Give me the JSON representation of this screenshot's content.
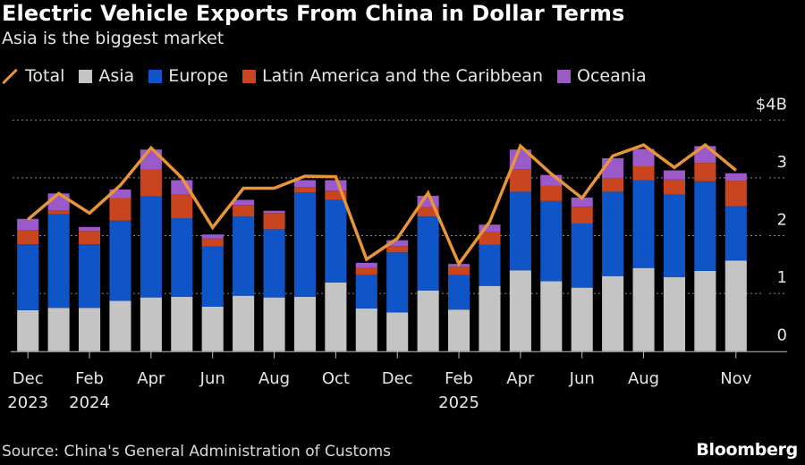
{
  "header": {
    "title": "Electric Vehicle Exports From China in Dollar Terms",
    "subtitle": "Asia is the biggest market"
  },
  "legend": [
    {
      "label": "Total",
      "kind": "line",
      "color": "#e8953a"
    },
    {
      "label": "Asia",
      "kind": "box",
      "color": "#c4c4c4"
    },
    {
      "label": "Europe",
      "kind": "box",
      "color": "#0f55c8"
    },
    {
      "label": "Latin America and the Caribbean",
      "kind": "box",
      "color": "#c8451f"
    },
    {
      "label": "Oceania",
      "kind": "box",
      "color": "#9b59c9"
    }
  ],
  "footer": {
    "source": "Source: China's General Administration of Customs",
    "brand": "Bloomberg"
  },
  "chart_data": {
    "type": "bar",
    "stacked": true,
    "title": "Electric Vehicle Exports From China in Dollar Terms",
    "subtitle": "Asia is the biggest market",
    "xlabel": "",
    "ylabel": "",
    "ylim": [
      0,
      4
    ],
    "yticks": [
      {
        "value": 0,
        "label": "0"
      },
      {
        "value": 1,
        "label": "1"
      },
      {
        "value": 2,
        "label": "2"
      },
      {
        "value": 3,
        "label": "3"
      },
      {
        "value": 4,
        "label": "$4B"
      }
    ],
    "grid": true,
    "legend_position": "top-left",
    "categories": [
      "Dec 2023",
      "Jan 2024",
      "Feb 2024",
      "Mar 2024",
      "Apr 2024",
      "May 2024",
      "Jun 2024",
      "Jul 2024",
      "Aug 2024",
      "Sep 2024",
      "Oct 2024",
      "Nov 2024",
      "Dec 2024",
      "Jan 2025",
      "Feb 2025",
      "Mar 2025",
      "Apr 2025",
      "May 2025",
      "Jun 2025",
      "Jul 2025",
      "Aug 2025",
      "Sep 2025",
      "Oct 2025",
      "Nov 2025"
    ],
    "xtick_labels": [
      {
        "index": 0,
        "line1": "Dec",
        "line2": "2023"
      },
      {
        "index": 2,
        "line1": "Feb",
        "line2": "2024"
      },
      {
        "index": 4,
        "line1": "Apr",
        "line2": ""
      },
      {
        "index": 6,
        "line1": "Jun",
        "line2": ""
      },
      {
        "index": 8,
        "line1": "Aug",
        "line2": ""
      },
      {
        "index": 10,
        "line1": "Oct",
        "line2": ""
      },
      {
        "index": 12,
        "line1": "Dec",
        "line2": ""
      },
      {
        "index": 14,
        "line1": "Feb",
        "line2": "2025"
      },
      {
        "index": 16,
        "line1": "Apr",
        "line2": ""
      },
      {
        "index": 18,
        "line1": "Jun",
        "line2": ""
      },
      {
        "index": 20,
        "line1": "Aug",
        "line2": ""
      },
      {
        "index": 23,
        "line1": "Nov",
        "line2": ""
      }
    ],
    "series": [
      {
        "name": "Asia",
        "color": "#c4c4c4",
        "values": [
          0.71,
          0.75,
          0.75,
          0.87,
          0.93,
          0.94,
          0.77,
          0.96,
          0.93,
          0.94,
          1.19,
          0.74,
          0.67,
          1.05,
          0.72,
          1.13,
          1.4,
          1.21,
          1.1,
          1.3,
          1.44,
          1.28,
          1.39,
          1.57
        ]
      },
      {
        "name": "Europe",
        "color": "#0f55c8",
        "values": [
          1.14,
          1.62,
          1.1,
          1.39,
          1.75,
          1.36,
          1.04,
          1.37,
          1.18,
          1.81,
          1.43,
          0.58,
          1.04,
          1.28,
          0.6,
          0.71,
          1.36,
          1.39,
          1.11,
          1.46,
          1.52,
          1.43,
          1.55,
          0.94
        ]
      },
      {
        "name": "Latin America and the Caribbean",
        "color": "#c8451f",
        "values": [
          0.25,
          0.07,
          0.23,
          0.39,
          0.46,
          0.41,
          0.14,
          0.2,
          0.28,
          0.09,
          0.16,
          0.12,
          0.11,
          0.16,
          0.14,
          0.23,
          0.39,
          0.26,
          0.29,
          0.24,
          0.24,
          0.26,
          0.32,
          0.44
        ]
      },
      {
        "name": "Oceania",
        "color": "#9b59c9",
        "values": [
          0.19,
          0.29,
          0.07,
          0.15,
          0.35,
          0.25,
          0.07,
          0.09,
          0.04,
          0.12,
          0.18,
          0.09,
          0.1,
          0.2,
          0.05,
          0.12,
          0.34,
          0.19,
          0.16,
          0.34,
          0.3,
          0.16,
          0.29,
          0.13
        ]
      },
      {
        "name": "Total",
        "type": "line",
        "color": "#e8953a",
        "values": [
          2.28,
          2.73,
          2.39,
          2.87,
          3.52,
          3.0,
          2.14,
          2.82,
          2.82,
          3.03,
          3.02,
          1.59,
          1.95,
          2.74,
          1.51,
          2.24,
          3.55,
          3.07,
          2.65,
          3.38,
          3.57,
          3.18,
          3.57,
          3.13
        ]
      }
    ]
  }
}
